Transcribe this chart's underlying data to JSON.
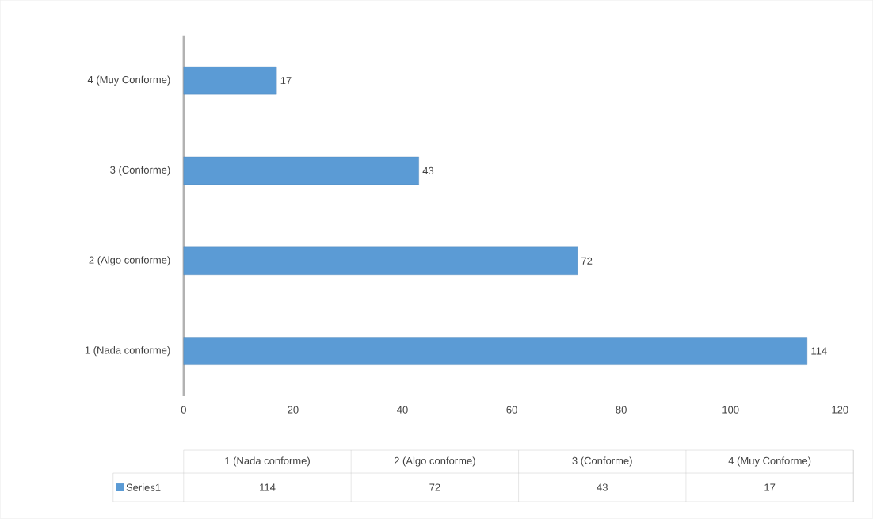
{
  "chart_data": {
    "type": "bar",
    "orientation": "horizontal",
    "categories": [
      "4 (Muy Conforme)",
      "3 (Conforme)",
      "2 (Algo conforme)",
      "1 (Nada conforme)"
    ],
    "series": [
      {
        "name": "Series1",
        "color": "#5b9bd5",
        "values": [
          17,
          43,
          72,
          114
        ]
      }
    ],
    "xlim": [
      0,
      120
    ],
    "xticks": [
      0,
      20,
      40,
      60,
      80,
      100,
      120
    ],
    "data_labels": true,
    "annotations": [
      "114",
      "72",
      "43",
      "17"
    ],
    "legend": "bottom",
    "grid": false
  }
}
